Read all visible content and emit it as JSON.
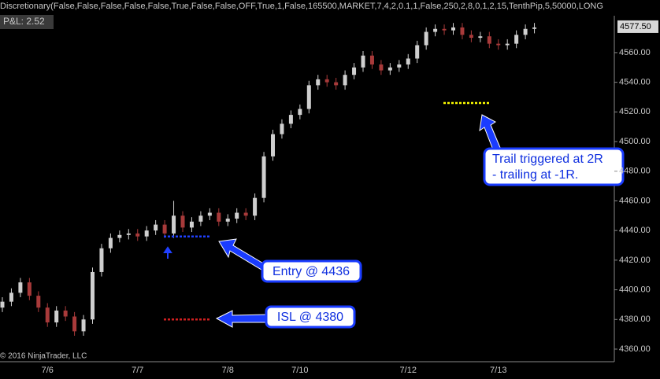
{
  "chart_data": {
    "type": "candlestick",
    "title": "Discretionary(False,False,False,False,False,True,False,False,OFF,True,1,False,165500,MARKET,7,4,2,0.1,1,False,250,2,8,0,1,2,15,TenthPip,5,50000,LONG",
    "info_label": "P&L: 2.52",
    "copyright": "© 2016 NinjaTrader, LLC",
    "categories": [
      null,
      null,
      null,
      null,
      null,
      "7/6",
      null,
      null,
      null,
      null,
      null,
      null,
      null,
      null,
      null,
      "7/7",
      null,
      null,
      null,
      null,
      null,
      null,
      null,
      null,
      null,
      "7/8",
      null,
      null,
      null,
      null,
      null,
      null,
      null,
      "7/10",
      null,
      null,
      null,
      null,
      null,
      null,
      null,
      null,
      null,
      null,
      null,
      "7/12",
      null,
      null,
      null,
      null,
      null,
      null,
      null,
      null,
      null,
      "7/13",
      null,
      null,
      null,
      null
    ],
    "open": [
      4388,
      4392,
      4398,
      4405,
      4396,
      4388,
      4378,
      4386,
      4382,
      4372,
      4380,
      4412,
      4428,
      4435,
      4437,
      4438,
      4436,
      4440,
      4444,
      4438,
      4450,
      4442,
      4446,
      4450,
      4452,
      4446,
      4448,
      4452,
      4450,
      4462,
      4490,
      4505,
      4512,
      4518,
      4522,
      4538,
      4542,
      4540,
      4538,
      4545,
      4550,
      4558,
      4552,
      4548,
      4550,
      4552,
      4556,
      4565,
      4574,
      4576,
      4575,
      4577,
      4572,
      4570,
      4571,
      4566,
      4565,
      4566,
      4572,
      4576
    ],
    "high": [
      4395,
      4401,
      4408,
      4408,
      4399,
      4391,
      4389,
      4389,
      4385,
      4383,
      4415,
      4431,
      4438,
      4440,
      4441,
      4441,
      4443,
      4447,
      4447,
      4460,
      4453,
      4449,
      4453,
      4455,
      4455,
      4451,
      4455,
      4455,
      4465,
      4493,
      4508,
      4515,
      4521,
      4525,
      4541,
      4545,
      4545,
      4543,
      4548,
      4553,
      4561,
      4561,
      4555,
      4553,
      4555,
      4559,
      4568,
      4577,
      4579,
      4579,
      4580,
      4580,
      4575,
      4574,
      4574,
      4569,
      4569,
      4575,
      4579,
      4580
    ],
    "low": [
      4385,
      4389,
      4395,
      4393,
      4385,
      4375,
      4375,
      4379,
      4369,
      4369,
      4377,
      4409,
      4425,
      4432,
      4434,
      4433,
      4433,
      4437,
      4435,
      4435,
      4439,
      4439,
      4443,
      4447,
      4443,
      4443,
      4445,
      4447,
      4447,
      4459,
      4487,
      4502,
      4509,
      4515,
      4519,
      4535,
      4537,
      4535,
      4535,
      4542,
      4547,
      4549,
      4545,
      4545,
      4547,
      4549,
      4553,
      4562,
      4571,
      4572,
      4572,
      4569,
      4567,
      4567,
      4563,
      4562,
      4562,
      4563,
      4569,
      4573
    ],
    "close": [
      4392,
      4398,
      4405,
      4396,
      4388,
      4378,
      4386,
      4382,
      4372,
      4380,
      4412,
      4428,
      4435,
      4437,
      4438,
      4436,
      4440,
      4444,
      4438,
      4450,
      4442,
      4446,
      4450,
      4452,
      4446,
      4448,
      4452,
      4450,
      4462,
      4490,
      4505,
      4512,
      4518,
      4522,
      4538,
      4542,
      4540,
      4538,
      4545,
      4550,
      4558,
      4552,
      4548,
      4550,
      4552,
      4556,
      4565,
      4574,
      4576,
      4575,
      4577,
      4572,
      4570,
      4571,
      4566,
      4565,
      4566,
      4572,
      4576,
      4577
    ],
    "up_color": "#cfcfcf",
    "down_color": "#a83a3a",
    "ylim": [
      4351.5,
      4595.5
    ],
    "yticks": [
      {
        "value": 4360,
        "label": "4360.00"
      },
      {
        "value": 4380,
        "label": "4380.00"
      },
      {
        "value": 4400,
        "label": "4400.00"
      },
      {
        "value": 4420,
        "label": "4420.00"
      },
      {
        "value": 4440,
        "label": "4440.00"
      },
      {
        "value": 4460,
        "label": "4460.00"
      },
      {
        "value": 4480,
        "label": "4480.00"
      },
      {
        "value": 4500,
        "label": "4500.00"
      },
      {
        "value": 4520,
        "label": "4520.00"
      },
      {
        "value": 4540,
        "label": "4540.00"
      },
      {
        "value": 4560,
        "label": "4560.00"
      }
    ],
    "last_price": {
      "value": 4577.5,
      "label": "4577.50"
    },
    "levels": [
      {
        "value": 4436,
        "color": "#2040ff"
      },
      {
        "value": 4380,
        "color": "#d02020"
      },
      {
        "value": 4526,
        "color": "#ffff00"
      }
    ],
    "annotations": [
      {
        "text": "Entry @ 4436"
      },
      {
        "text": "ISL @ 4380"
      },
      {
        "lines": [
          "Trail triggered at 2R",
          "- trailing at -1R."
        ]
      }
    ]
  }
}
